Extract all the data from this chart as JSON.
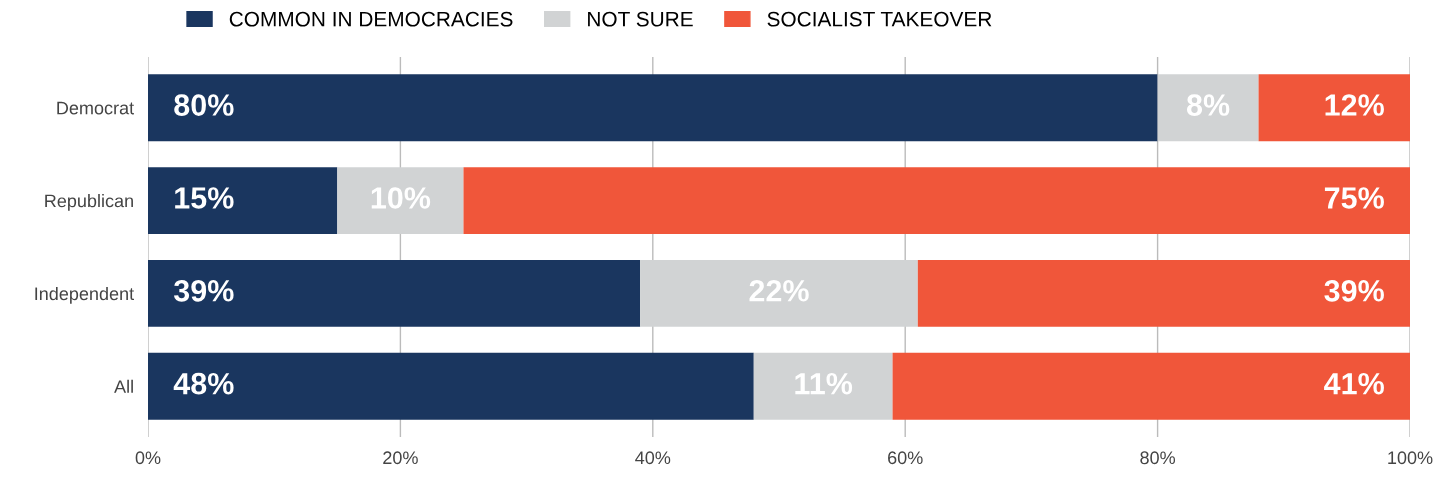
{
  "chart_data": {
    "type": "bar",
    "orientation": "horizontal",
    "stacked": true,
    "categories": [
      "Democrat",
      "Republican",
      "Independent",
      "All"
    ],
    "series": [
      {
        "name": "COMMON IN DEMOCRACIES",
        "color": "#1a365f",
        "values": [
          80,
          15,
          39,
          48
        ],
        "value_labels": [
          "80%",
          "15%",
          "39%",
          "48%"
        ]
      },
      {
        "name": "NOT SURE",
        "color": "#d1d3d4",
        "values": [
          8,
          10,
          22,
          11
        ],
        "value_labels": [
          "8%",
          "10%",
          "22%",
          "11%"
        ]
      },
      {
        "name": "SOCIALIST TAKEOVER",
        "color": "#f0563a",
        "values": [
          12,
          75,
          39,
          41
        ],
        "value_labels": [
          "12%",
          "75%",
          "39%",
          "41%"
        ]
      }
    ],
    "xlim": [
      0,
      100
    ],
    "xticks": [
      {
        "value": 0,
        "label": "0%"
      },
      {
        "value": 20,
        "label": "20%"
      },
      {
        "value": 40,
        "label": "40%"
      },
      {
        "value": 60,
        "label": "60%"
      },
      {
        "value": 80,
        "label": "80%"
      },
      {
        "value": 100,
        "label": "100%"
      }
    ],
    "grid": "x",
    "legend": "top"
  }
}
